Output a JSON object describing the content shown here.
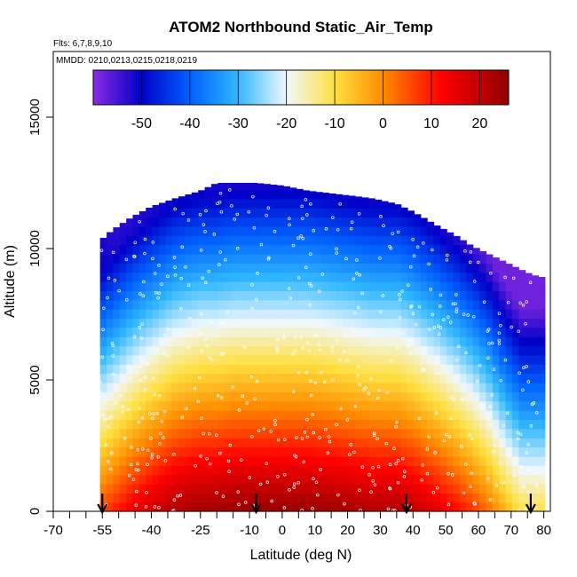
{
  "chart_data": {
    "type": "heatmap",
    "title": "ATOM2 Northbound Static_Air_Temp",
    "flights_label": "Flts: 6,7,8,9,10",
    "dates_label": "MMDD: 0210,0213,0215,0218,0219",
    "xlabel": "Latitude (deg N)",
    "ylabel": "Altitude (m)",
    "xlim": [
      -70,
      82
    ],
    "ylim": [
      0,
      17500
    ],
    "x_ticks": [
      -70,
      -55,
      -40,
      -25,
      -10,
      0,
      10,
      20,
      30,
      40,
      50,
      60,
      70,
      80
    ],
    "x_minor_ticks": [
      -65,
      -60,
      -50,
      -45,
      -35,
      -30,
      -20,
      -15,
      -5,
      5,
      15,
      25,
      35,
      45,
      55,
      65,
      75
    ],
    "y_ticks": [
      0,
      5000,
      10000,
      15000
    ],
    "colorbar": {
      "min": -60,
      "max": 26,
      "ticks": [
        -50,
        -40,
        -30,
        -20,
        -10,
        0,
        10,
        20
      ],
      "colors": [
        "#8a2be2",
        "#0000c8",
        "#0060ff",
        "#30b8ff",
        "#f0f8ff",
        "#ffe040",
        "#ff8c00",
        "#ff0000",
        "#900000"
      ],
      "color_stops": [
        -60,
        -50,
        -40,
        -30,
        -20,
        -10,
        0,
        12,
        26
      ]
    },
    "field": {
      "profile_latitudes": [
        -55.7,
        -52,
        -46,
        -40,
        -33,
        -25,
        -20,
        -15,
        -8,
        0,
        8,
        15,
        22,
        28,
        35,
        40,
        47,
        53,
        58,
        63,
        68,
        73,
        76.5,
        80
      ],
      "top_altitude_m": [
        10300,
        10700,
        11200,
        11600,
        11900,
        12200,
        12500,
        12500,
        12500,
        12400,
        12200,
        12100,
        12000,
        11900,
        11700,
        11400,
        10900,
        10500,
        10100,
        9800,
        9500,
        9200,
        9000,
        8900
      ],
      "surface_temp_c": [
        6,
        9,
        14,
        18,
        22,
        24,
        24,
        25,
        25,
        25,
        25,
        24,
        23,
        22,
        22,
        20,
        16,
        12,
        8,
        3,
        -4,
        -10,
        -10,
        -10
      ],
      "tropopause_m": [
        9000,
        9800,
        10600,
        11200,
        11600,
        12000,
        12200,
        12300,
        12300,
        12300,
        12200,
        12100,
        12000,
        11900,
        11700,
        11400,
        11000,
        10600,
        10200,
        9800,
        9400,
        9100,
        9000,
        9000
      ]
    },
    "profile_markers_latitude": [
      -55,
      -8,
      38,
      76
    ]
  }
}
